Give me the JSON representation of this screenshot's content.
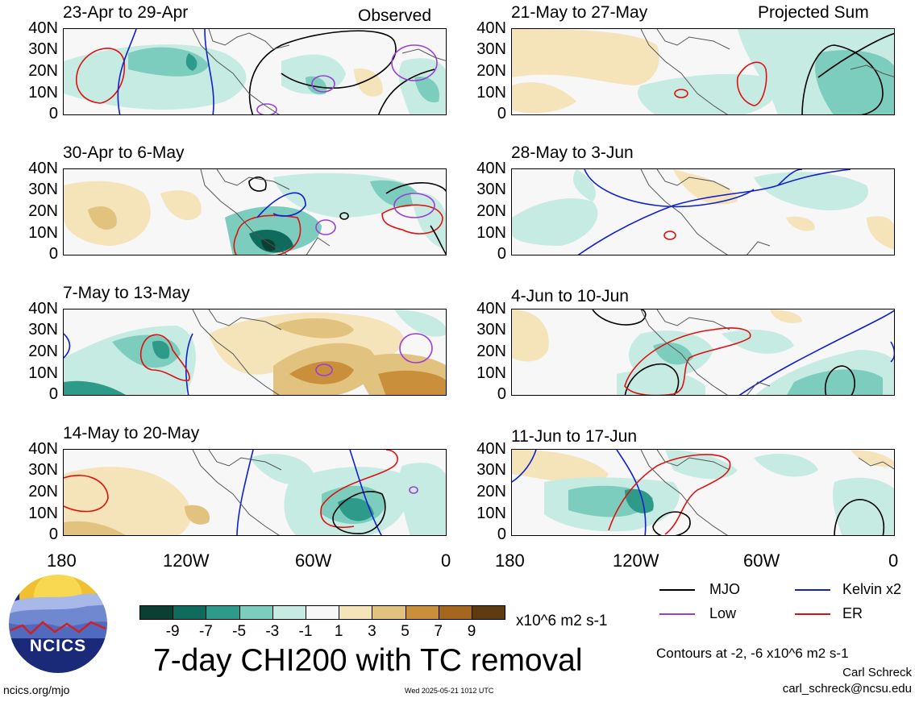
{
  "header": {
    "left_label": "Observed",
    "right_label": "Projected Sum"
  },
  "panels": [
    {
      "id": "p1",
      "title": "23-Apr to 29-Apr",
      "column": "left"
    },
    {
      "id": "p2",
      "title": "30-Apr to 6-May",
      "column": "left"
    },
    {
      "id": "p3",
      "title": "7-May to 13-May",
      "column": "left"
    },
    {
      "id": "p4",
      "title": "14-May to 20-May",
      "column": "left"
    },
    {
      "id": "p5",
      "title": "21-May to 27-May",
      "column": "right"
    },
    {
      "id": "p6",
      "title": "28-May to 3-Jun",
      "column": "right"
    },
    {
      "id": "p7",
      "title": "4-Jun to 10-Jun",
      "column": "right"
    },
    {
      "id": "p8",
      "title": "11-Jun to 17-Jun",
      "column": "right"
    }
  ],
  "axes": {
    "lat_labels": [
      "40N",
      "30N",
      "20N",
      "10N",
      "0"
    ],
    "lon_labels": [
      "180",
      "120W",
      "60W",
      "0"
    ]
  },
  "colorbar": {
    "labels": [
      "-9",
      "-7",
      "-5",
      "-3",
      "-1",
      "1",
      "3",
      "5",
      "7",
      "9"
    ],
    "colors": [
      "#0b3f33",
      "#0f6b5c",
      "#2e9a8a",
      "#7ccdbd",
      "#c6ebe3",
      "#f7f7f7",
      "#f5e3b9",
      "#e2c27f",
      "#c98f3a",
      "#a5661e",
      "#5e3b10"
    ],
    "units": "x10^6 m2 s-1"
  },
  "legend": {
    "mjo": {
      "label": "MJO",
      "color": "#000000"
    },
    "kelvin": {
      "label": "Kelvin x2",
      "color": "#1020d0"
    },
    "low": {
      "label": "Low",
      "color": "#9a3fd6"
    },
    "er": {
      "label": "ER",
      "color": "#e01010"
    }
  },
  "main_title": "7-day CHI200 with TC removal",
  "contours_note": "Contours at -2, -6 x10^6 m2 s-1",
  "author": "Carl Schreck",
  "email": "carl_schreck@ncsu.edu",
  "website": "ncics.org/mjo",
  "timestamp": "Wed 2025-05-21 1012 UTC",
  "logo_text": "NCICS"
}
